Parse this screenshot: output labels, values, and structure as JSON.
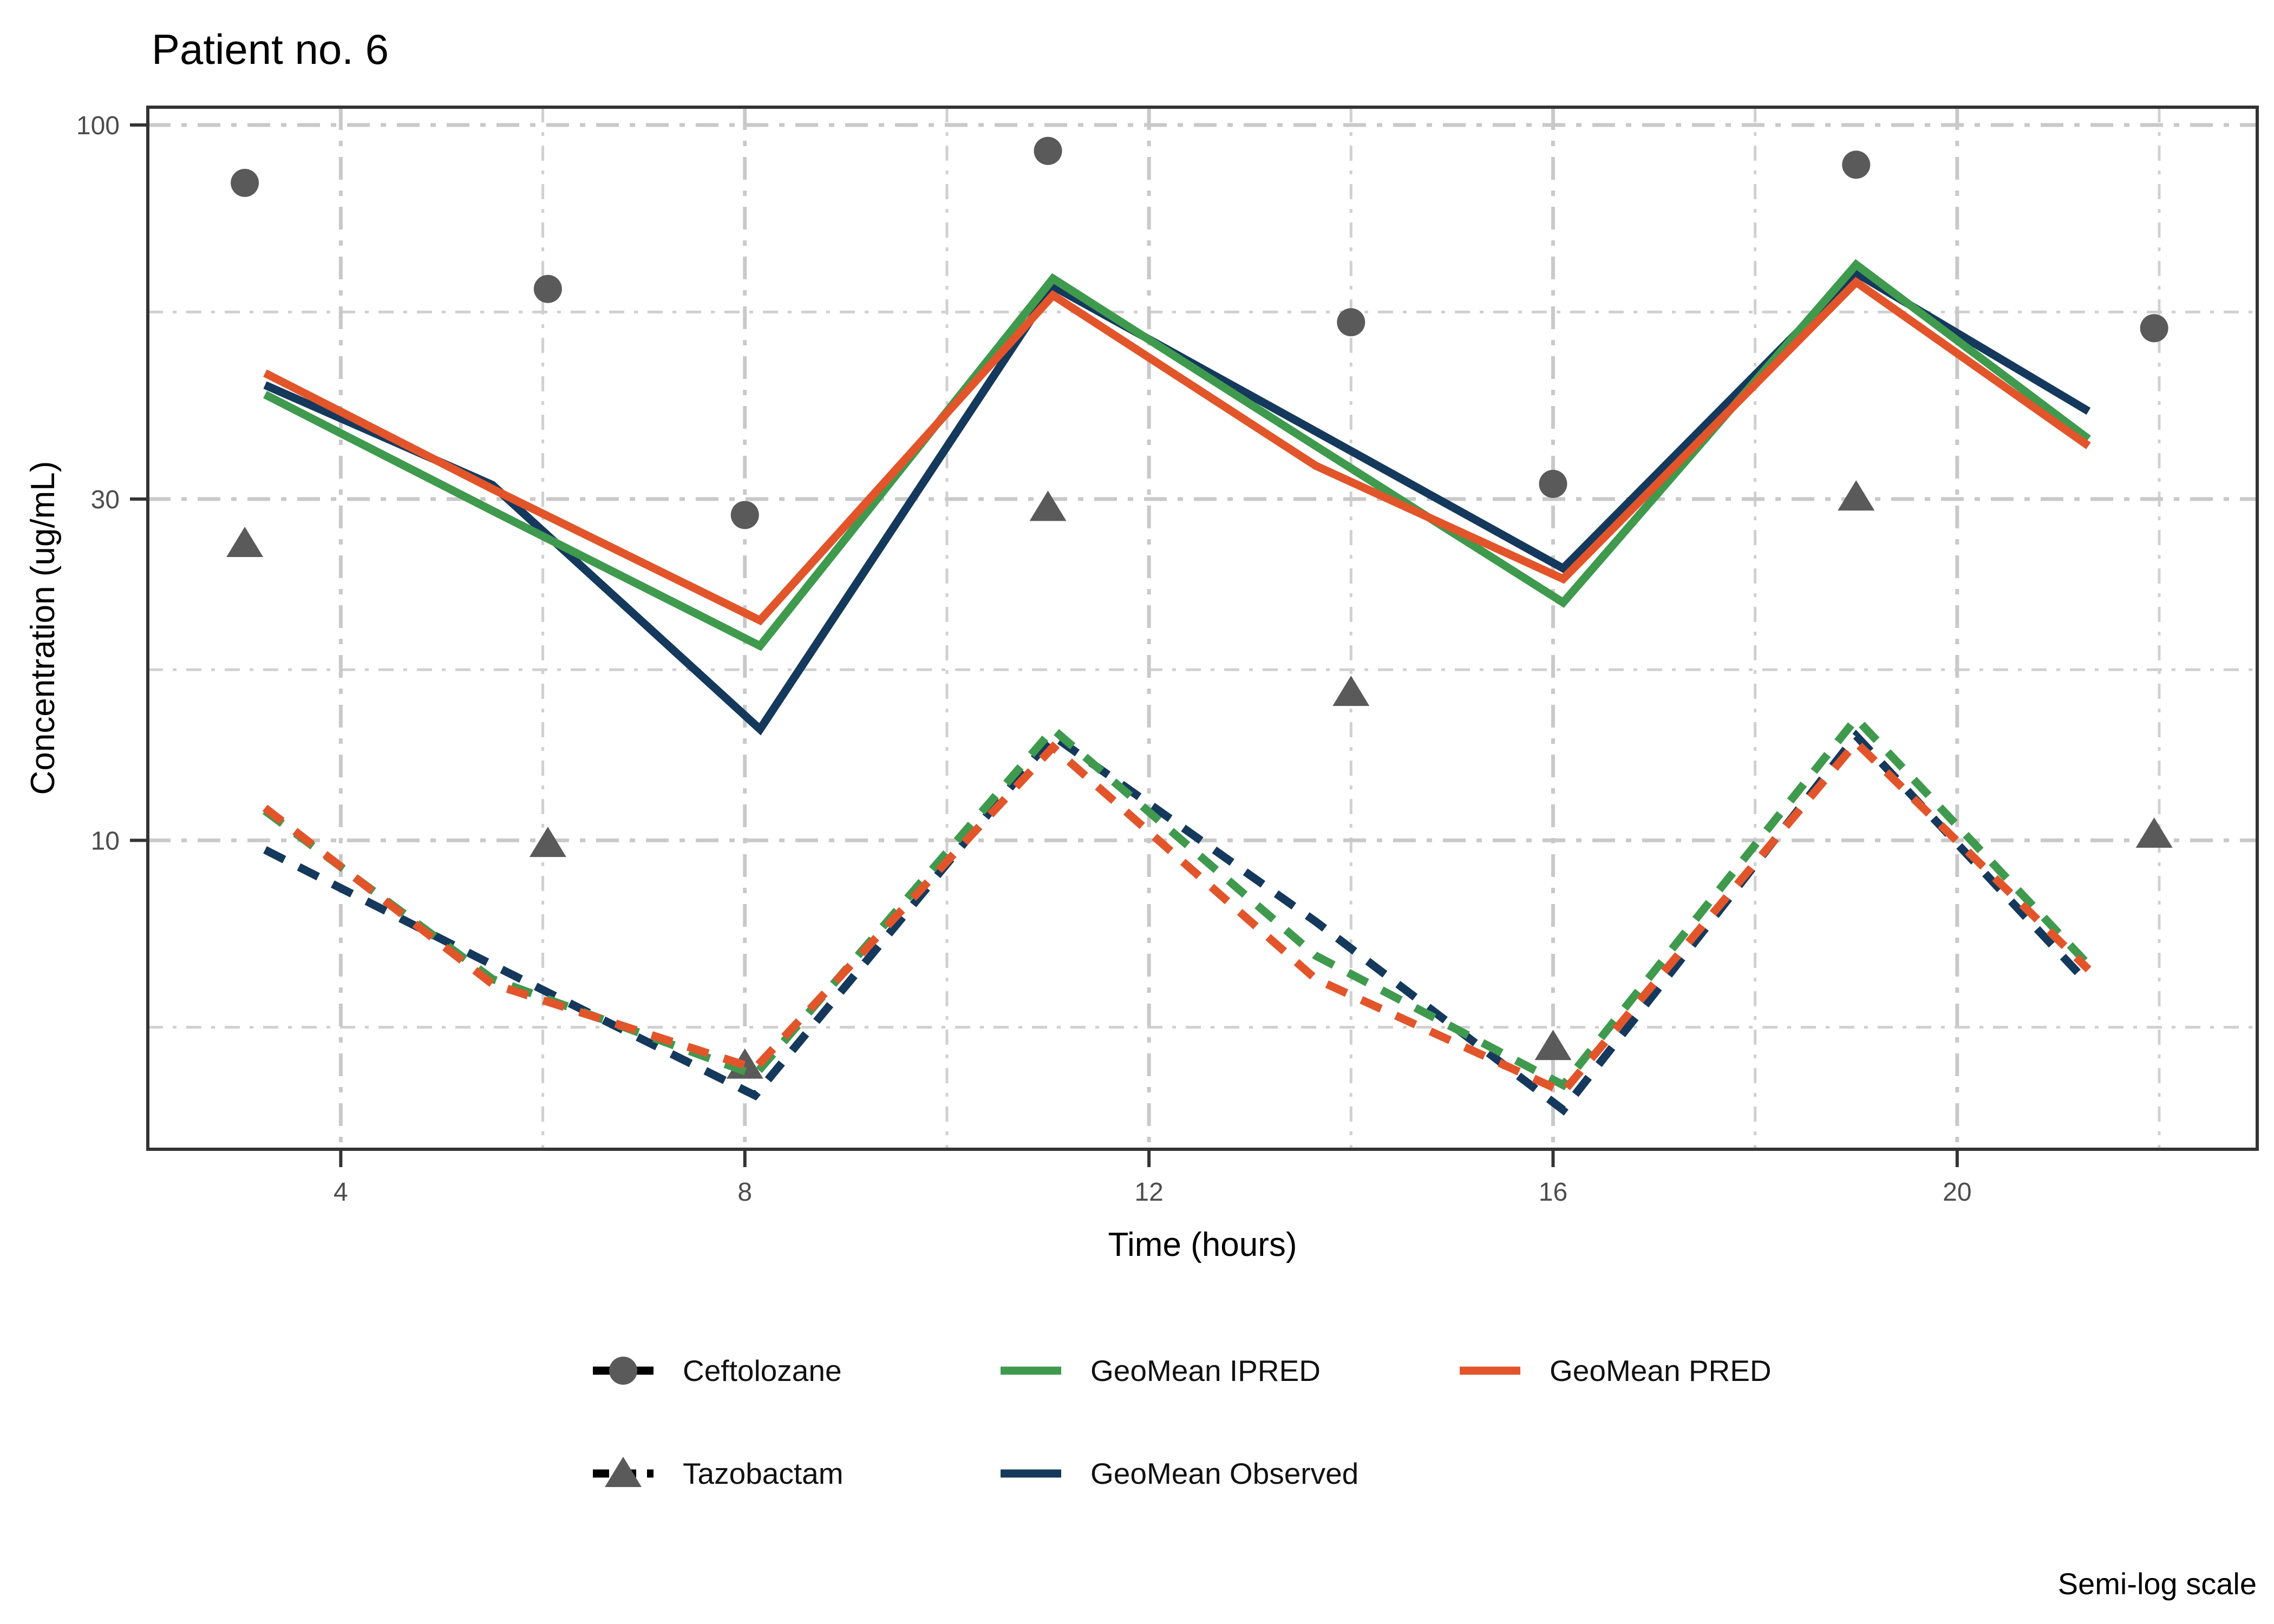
{
  "chart_data": {
    "type": "line",
    "title": "Patient no. 6",
    "xlabel": "Time (hours)",
    "ylabel": "Concentration (ug/mL)",
    "scale_note": "Semi-log scale",
    "x_axis": {
      "ticks": [
        4,
        8,
        12,
        16,
        20
      ],
      "tick_labels": [
        "4",
        "8",
        "12",
        "16",
        "20"
      ],
      "minor_gridlines": [
        6,
        10,
        14,
        18,
        22
      ],
      "range": [
        2.09,
        22.97
      ]
    },
    "y_axis": {
      "log": true,
      "ticks": [
        100,
        30,
        10
      ],
      "tick_labels": [
        "100",
        "30",
        "10"
      ],
      "minor_gridlines": [
        54.77,
        17.32,
        5.48
      ],
      "range": [
        3.7,
        105.9
      ]
    },
    "scatter_series": [
      {
        "name": "Ceftolozane",
        "marker": "circle",
        "color": "#5a5a5a",
        "x": [
          3.05,
          6.05,
          8.0,
          11.0,
          14.0,
          16.0,
          19.0,
          21.95
        ],
        "y": [
          83,
          59,
          28.5,
          92,
          53,
          31.5,
          88,
          52
        ]
      },
      {
        "name": "Tazobactam",
        "marker": "triangle",
        "color": "#5a5a5a",
        "x": [
          3.05,
          6.05,
          8.0,
          11.0,
          14.0,
          16.0,
          19.0,
          21.95
        ],
        "y": [
          26,
          9.9,
          4.85,
          29.2,
          16.1,
          5.15,
          30.2,
          10.2
        ]
      }
    ],
    "line_series": [
      {
        "name": "GeoMean Observed",
        "drug": "Ceftolozane",
        "color": "#14395c",
        "dash": "solid",
        "x": [
          3.25,
          5.5,
          8.15,
          11.05,
          13.65,
          16.1,
          19.0,
          21.3
        ],
        "y": [
          43.3,
          31.4,
          14.3,
          59.5,
          37.3,
          24.0,
          62.1,
          39.8
        ]
      },
      {
        "name": "GeoMean IPRED",
        "drug": "Ceftolozane",
        "color": "#3f9a4e",
        "dash": "solid",
        "x": [
          3.25,
          5.5,
          8.15,
          11.05,
          13.65,
          16.1,
          19.0,
          21.3
        ],
        "y": [
          42.0,
          28.9,
          18.7,
          61.0,
          35.6,
          21.5,
          63.8,
          36.4
        ]
      },
      {
        "name": "GeoMean PRED",
        "drug": "Ceftolozane",
        "color": "#e2552b",
        "dash": "solid",
        "x": [
          3.25,
          5.5,
          8.15,
          11.05,
          13.65,
          16.1,
          19.0,
          21.3
        ],
        "y": [
          45.0,
          31.0,
          20.3,
          57.8,
          33.4,
          23.2,
          60.3,
          35.6
        ]
      },
      {
        "name": "GeoMean Observed",
        "drug": "Tazobactam",
        "color": "#14395c",
        "dash": "dashed",
        "x": [
          3.25,
          5.5,
          8.1,
          11.05,
          13.65,
          16.1,
          19.0,
          21.3
        ],
        "y": [
          9.7,
          6.7,
          4.4,
          14.0,
          7.7,
          4.2,
          14.0,
          6.3
        ]
      },
      {
        "name": "GeoMean IPRED",
        "drug": "Tazobactam",
        "color": "#3f9a4e",
        "dash": "dashed",
        "x": [
          3.25,
          5.5,
          8.1,
          11.05,
          13.65,
          16.1,
          19.0,
          21.3
        ],
        "y": [
          11.0,
          6.4,
          4.7,
          14.3,
          6.9,
          4.55,
          14.8,
          6.7
        ]
      },
      {
        "name": "GeoMean PRED",
        "drug": "Tazobactam",
        "color": "#e2552b",
        "dash": "dashed",
        "x": [
          3.25,
          5.5,
          8.1,
          11.05,
          13.65,
          16.1,
          19.0,
          21.3
        ],
        "y": [
          11.1,
          6.3,
          4.8,
          13.5,
          6.4,
          4.45,
          13.7,
          6.6
        ]
      }
    ],
    "legend": {
      "rows": [
        [
          {
            "id": "ceftolozane",
            "label": "Ceftolozane",
            "key": "point-line",
            "marker": "circle",
            "marker_color": "#5a5a5a",
            "line_color": "#000000",
            "line_dash": "solid"
          },
          {
            "id": "geomean-ipred",
            "label": "GeoMean IPRED",
            "key": "line",
            "line_color": "#3f9a4e",
            "line_dash": "solid"
          },
          {
            "id": "geomean-pred",
            "label": "GeoMean PRED",
            "key": "line",
            "line_color": "#e2552b",
            "line_dash": "solid"
          }
        ],
        [
          {
            "id": "tazobactam",
            "label": "Tazobactam",
            "key": "point-line",
            "marker": "triangle",
            "marker_color": "#5a5a5a",
            "line_color": "#000000",
            "line_dash": "dashed"
          },
          {
            "id": "geomean-observed",
            "label": "GeoMean Observed",
            "key": "line",
            "line_color": "#14395c",
            "line_dash": "solid"
          }
        ]
      ]
    },
    "style_colors": {
      "major_grid": "#c9c9c9",
      "minor_grid": "#d0d0d0",
      "panel_border": "#333333",
      "tick_mark": "#333333",
      "tick_label": "#4d4d4d",
      "point_gray": "#5a5a5a"
    }
  }
}
